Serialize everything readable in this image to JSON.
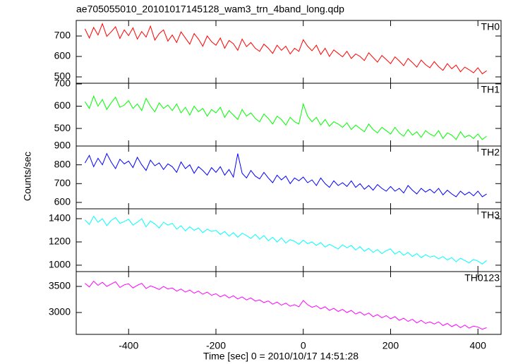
{
  "title": "ae705055010_20101017145128_wam3_trn_4band_long.qdp",
  "xlabel": "Time [sec] 0 = 2010/10/17 14:51:28",
  "ylabel": "Counts/sec",
  "chart_data": [
    {
      "type": "line",
      "label": "TH0",
      "color": "#ff0000",
      "xlim": [
        -520,
        453
      ],
      "ylim": [
        469,
        776
      ],
      "yticks": [
        500,
        600,
        700
      ],
      "x": [
        -500,
        -490,
        -480,
        -470,
        -460,
        -450,
        -440,
        -430,
        -420,
        -410,
        -400,
        -390,
        -380,
        -370,
        -360,
        -350,
        -340,
        -330,
        -320,
        -310,
        -300,
        -290,
        -280,
        -270,
        -260,
        -250,
        -240,
        -230,
        -220,
        -210,
        -200,
        -190,
        -180,
        -170,
        -160,
        -150,
        -140,
        -130,
        -120,
        -110,
        -100,
        -90,
        -80,
        -70,
        -60,
        -50,
        -40,
        -30,
        -20,
        -10,
        0,
        10,
        20,
        30,
        40,
        50,
        60,
        70,
        80,
        90,
        100,
        110,
        120,
        130,
        140,
        150,
        160,
        170,
        180,
        190,
        200,
        210,
        220,
        230,
        240,
        250,
        260,
        270,
        280,
        290,
        300,
        310,
        320,
        330,
        340,
        350,
        360,
        370,
        380,
        390,
        400,
        410,
        420
      ],
      "values": [
        735,
        690,
        742,
        705,
        760,
        698,
        720,
        745,
        688,
        730,
        702,
        740,
        685,
        722,
        695,
        748,
        680,
        712,
        730,
        675,
        705,
        668,
        720,
        690,
        660,
        712,
        685,
        650,
        700,
        672,
        655,
        690,
        640,
        678,
        662,
        630,
        685,
        648,
        668,
        640,
        625,
        660,
        640,
        615,
        655,
        630,
        650,
        612,
        640,
        625,
        682,
        650,
        628,
        655,
        610,
        640,
        600,
        632,
        615,
        598,
        625,
        590,
        612,
        600,
        580,
        618,
        595,
        572,
        605,
        585,
        565,
        598,
        578,
        555,
        590,
        570,
        548,
        582,
        560,
        545,
        575,
        550,
        532,
        565,
        540,
        558,
        525,
        548,
        535,
        520,
        545,
        515,
        530
      ]
    },
    {
      "type": "line",
      "label": "TH1",
      "color": "#00ff00",
      "xlim": [
        -520,
        453
      ],
      "ylim": [
        421,
        703
      ],
      "yticks": [
        500,
        600,
        700
      ],
      "x": [
        -500,
        -490,
        -480,
        -470,
        -460,
        -450,
        -440,
        -430,
        -420,
        -410,
        -400,
        -390,
        -380,
        -370,
        -360,
        -350,
        -340,
        -330,
        -320,
        -310,
        -300,
        -290,
        -280,
        -270,
        -260,
        -250,
        -240,
        -230,
        -220,
        -210,
        -200,
        -190,
        -180,
        -170,
        -160,
        -150,
        -140,
        -130,
        -120,
        -110,
        -100,
        -90,
        -80,
        -70,
        -60,
        -50,
        -40,
        -30,
        -20,
        -10,
        0,
        10,
        20,
        30,
        40,
        50,
        60,
        70,
        80,
        90,
        100,
        110,
        120,
        130,
        140,
        150,
        160,
        170,
        180,
        190,
        200,
        210,
        220,
        230,
        240,
        250,
        260,
        270,
        280,
        290,
        300,
        310,
        320,
        330,
        340,
        350,
        360,
        370,
        380,
        390,
        400,
        410,
        420
      ],
      "values": [
        620,
        590,
        645,
        600,
        630,
        585,
        615,
        640,
        595,
        605,
        625,
        590,
        610,
        580,
        635,
        600,
        575,
        615,
        590,
        605,
        580,
        610,
        570,
        595,
        560,
        600,
        575,
        590,
        555,
        585,
        570,
        595,
        550,
        580,
        560,
        540,
        585,
        555,
        570,
        545,
        530,
        565,
        545,
        520,
        555,
        540,
        515,
        550,
        530,
        520,
        610,
        555,
        530,
        550,
        515,
        540,
        510,
        530,
        520,
        505,
        525,
        495,
        515,
        500,
        485,
        520,
        495,
        480,
        505,
        490,
        475,
        505,
        480,
        465,
        495,
        470,
        485,
        460,
        490,
        475,
        465,
        490,
        455,
        480,
        470,
        450,
        485,
        460,
        470,
        455,
        475,
        450,
        465
      ]
    },
    {
      "type": "line",
      "label": "TH2",
      "color": "#0000ff",
      "xlim": [
        -520,
        453
      ],
      "ylim": [
        566,
        900
      ],
      "yticks": [
        600,
        700,
        800,
        900
      ],
      "x": [
        -500,
        -490,
        -480,
        -470,
        -460,
        -450,
        -440,
        -430,
        -420,
        -410,
        -400,
        -390,
        -380,
        -370,
        -360,
        -350,
        -340,
        -330,
        -320,
        -310,
        -300,
        -290,
        -280,
        -270,
        -260,
        -250,
        -240,
        -230,
        -220,
        -210,
        -200,
        -190,
        -180,
        -170,
        -160,
        -150,
        -140,
        -130,
        -120,
        -110,
        -100,
        -90,
        -80,
        -70,
        -60,
        -50,
        -40,
        -30,
        -20,
        -10,
        0,
        10,
        20,
        30,
        40,
        50,
        60,
        70,
        80,
        90,
        100,
        110,
        120,
        130,
        140,
        150,
        160,
        170,
        180,
        190,
        200,
        210,
        220,
        230,
        240,
        250,
        260,
        270,
        280,
        290,
        300,
        310,
        320,
        330,
        340,
        350,
        360,
        370,
        380,
        390,
        400,
        410,
        420
      ],
      "values": [
        810,
        850,
        790,
        835,
        800,
        860,
        815,
        780,
        830,
        805,
        820,
        785,
        840,
        800,
        770,
        825,
        795,
        810,
        775,
        805,
        790,
        760,
        815,
        780,
        800,
        755,
        790,
        770,
        745,
        785,
        760,
        790,
        745,
        775,
        735,
        860,
        755,
        730,
        770,
        740,
        725,
        760,
        730,
        705,
        745,
        720,
        740,
        700,
        730,
        715,
        735,
        705,
        720,
        690,
        730,
        700,
        680,
        715,
        690,
        705,
        685,
        715,
        680,
        700,
        670,
        690,
        665,
        695,
        675,
        660,
        685,
        660,
        675,
        650,
        690,
        665,
        645,
        675,
        655,
        670,
        650,
        675,
        640,
        665,
        645,
        630,
        660,
        640,
        655,
        635,
        660,
        630,
        645
      ]
    },
    {
      "type": "line",
      "label": "TH3",
      "color": "#00ffff",
      "xlim": [
        -520,
        453
      ],
      "ylim": [
        945,
        1485
      ],
      "yticks": [
        1000,
        1200,
        1400
      ],
      "x": [
        -500,
        -490,
        -480,
        -470,
        -460,
        -450,
        -440,
        -430,
        -420,
        -410,
        -400,
        -390,
        -380,
        -370,
        -360,
        -350,
        -340,
        -330,
        -320,
        -310,
        -300,
        -290,
        -280,
        -270,
        -260,
        -250,
        -240,
        -230,
        -220,
        -210,
        -200,
        -190,
        -180,
        -170,
        -160,
        -150,
        -140,
        -130,
        -120,
        -110,
        -100,
        -90,
        -80,
        -70,
        -60,
        -50,
        -40,
        -30,
        -20,
        -10,
        0,
        10,
        20,
        30,
        40,
        50,
        60,
        70,
        80,
        90,
        100,
        110,
        120,
        130,
        140,
        150,
        160,
        170,
        180,
        190,
        200,
        210,
        220,
        230,
        240,
        250,
        260,
        270,
        280,
        290,
        300,
        310,
        320,
        330,
        340,
        350,
        360,
        370,
        380,
        390,
        400,
        410,
        420
      ],
      "values": [
        1390,
        1350,
        1420,
        1370,
        1400,
        1340,
        1385,
        1410,
        1360,
        1375,
        1395,
        1345,
        1370,
        1400,
        1330,
        1380,
        1355,
        1320,
        1370,
        1345,
        1360,
        1310,
        1340,
        1295,
        1330,
        1300,
        1320,
        1280,
        1310,
        1290,
        1300,
        1265,
        1290,
        1250,
        1280,
        1240,
        1275,
        1255,
        1230,
        1265,
        1225,
        1255,
        1210,
        1240,
        1200,
        1235,
        1190,
        1220,
        1205,
        1180,
        1215,
        1185,
        1200,
        1170,
        1195,
        1155,
        1180,
        1160,
        1140,
        1175,
        1150,
        1170,
        1130,
        1160,
        1120,
        1145,
        1110,
        1135,
        1100,
        1125,
        1140,
        1095,
        1120,
        1085,
        1110,
        1075,
        1100,
        1065,
        1090,
        1070,
        1080,
        1055,
        1075,
        1045,
        1065,
        1030,
        1060,
        1040,
        1020,
        1050,
        1035,
        1010,
        1040
      ]
    },
    {
      "type": "line",
      "label": "TH0123",
      "color": "#ff00ff",
      "xlim": [
        -520,
        453
      ],
      "ylim": [
        2581,
        3784
      ],
      "yticks": [
        3000,
        3500
      ],
      "xticks": [
        -400,
        -200,
        0,
        200,
        400
      ],
      "x": [
        -500,
        -490,
        -480,
        -470,
        -460,
        -450,
        -440,
        -430,
        -420,
        -410,
        -400,
        -390,
        -380,
        -370,
        -360,
        -350,
        -340,
        -330,
        -320,
        -310,
        -300,
        -290,
        -280,
        -270,
        -260,
        -250,
        -240,
        -230,
        -220,
        -210,
        -200,
        -190,
        -180,
        -170,
        -160,
        -150,
        -140,
        -130,
        -120,
        -110,
        -100,
        -90,
        -80,
        -70,
        -60,
        -50,
        -40,
        -30,
        -20,
        -10,
        0,
        10,
        20,
        30,
        40,
        50,
        60,
        70,
        80,
        90,
        100,
        110,
        120,
        130,
        140,
        150,
        160,
        170,
        180,
        190,
        200,
        210,
        220,
        230,
        240,
        250,
        260,
        270,
        280,
        290,
        300,
        310,
        320,
        330,
        340,
        350,
        360,
        370,
        380,
        390,
        400,
        410,
        420
      ],
      "values": [
        3560,
        3490,
        3600,
        3520,
        3580,
        3500,
        3545,
        3590,
        3480,
        3530,
        3550,
        3470,
        3520,
        3560,
        3460,
        3510,
        3480,
        3440,
        3500,
        3450,
        3470,
        3410,
        3450,
        3390,
        3430,
        3370,
        3410,
        3350,
        3390,
        3330,
        3360,
        3300,
        3340,
        3280,
        3320,
        3260,
        3300,
        3240,
        3280,
        3220,
        3240,
        3190,
        3220,
        3160,
        3200,
        3140,
        3180,
        3120,
        3150,
        3110,
        3230,
        3150,
        3100,
        3130,
        3070,
        3110,
        3040,
        3080,
        3020,
        3060,
        3000,
        3040,
        2970,
        3010,
        2950,
        2990,
        2920,
        2960,
        2900,
        2940,
        2880,
        2920,
        2850,
        2890,
        2830,
        2870,
        2800,
        2850,
        2790,
        2820,
        2780,
        2820,
        2750,
        2790,
        2730,
        2770,
        2710,
        2760,
        2700,
        2740,
        2720,
        2680,
        2710
      ]
    }
  ]
}
